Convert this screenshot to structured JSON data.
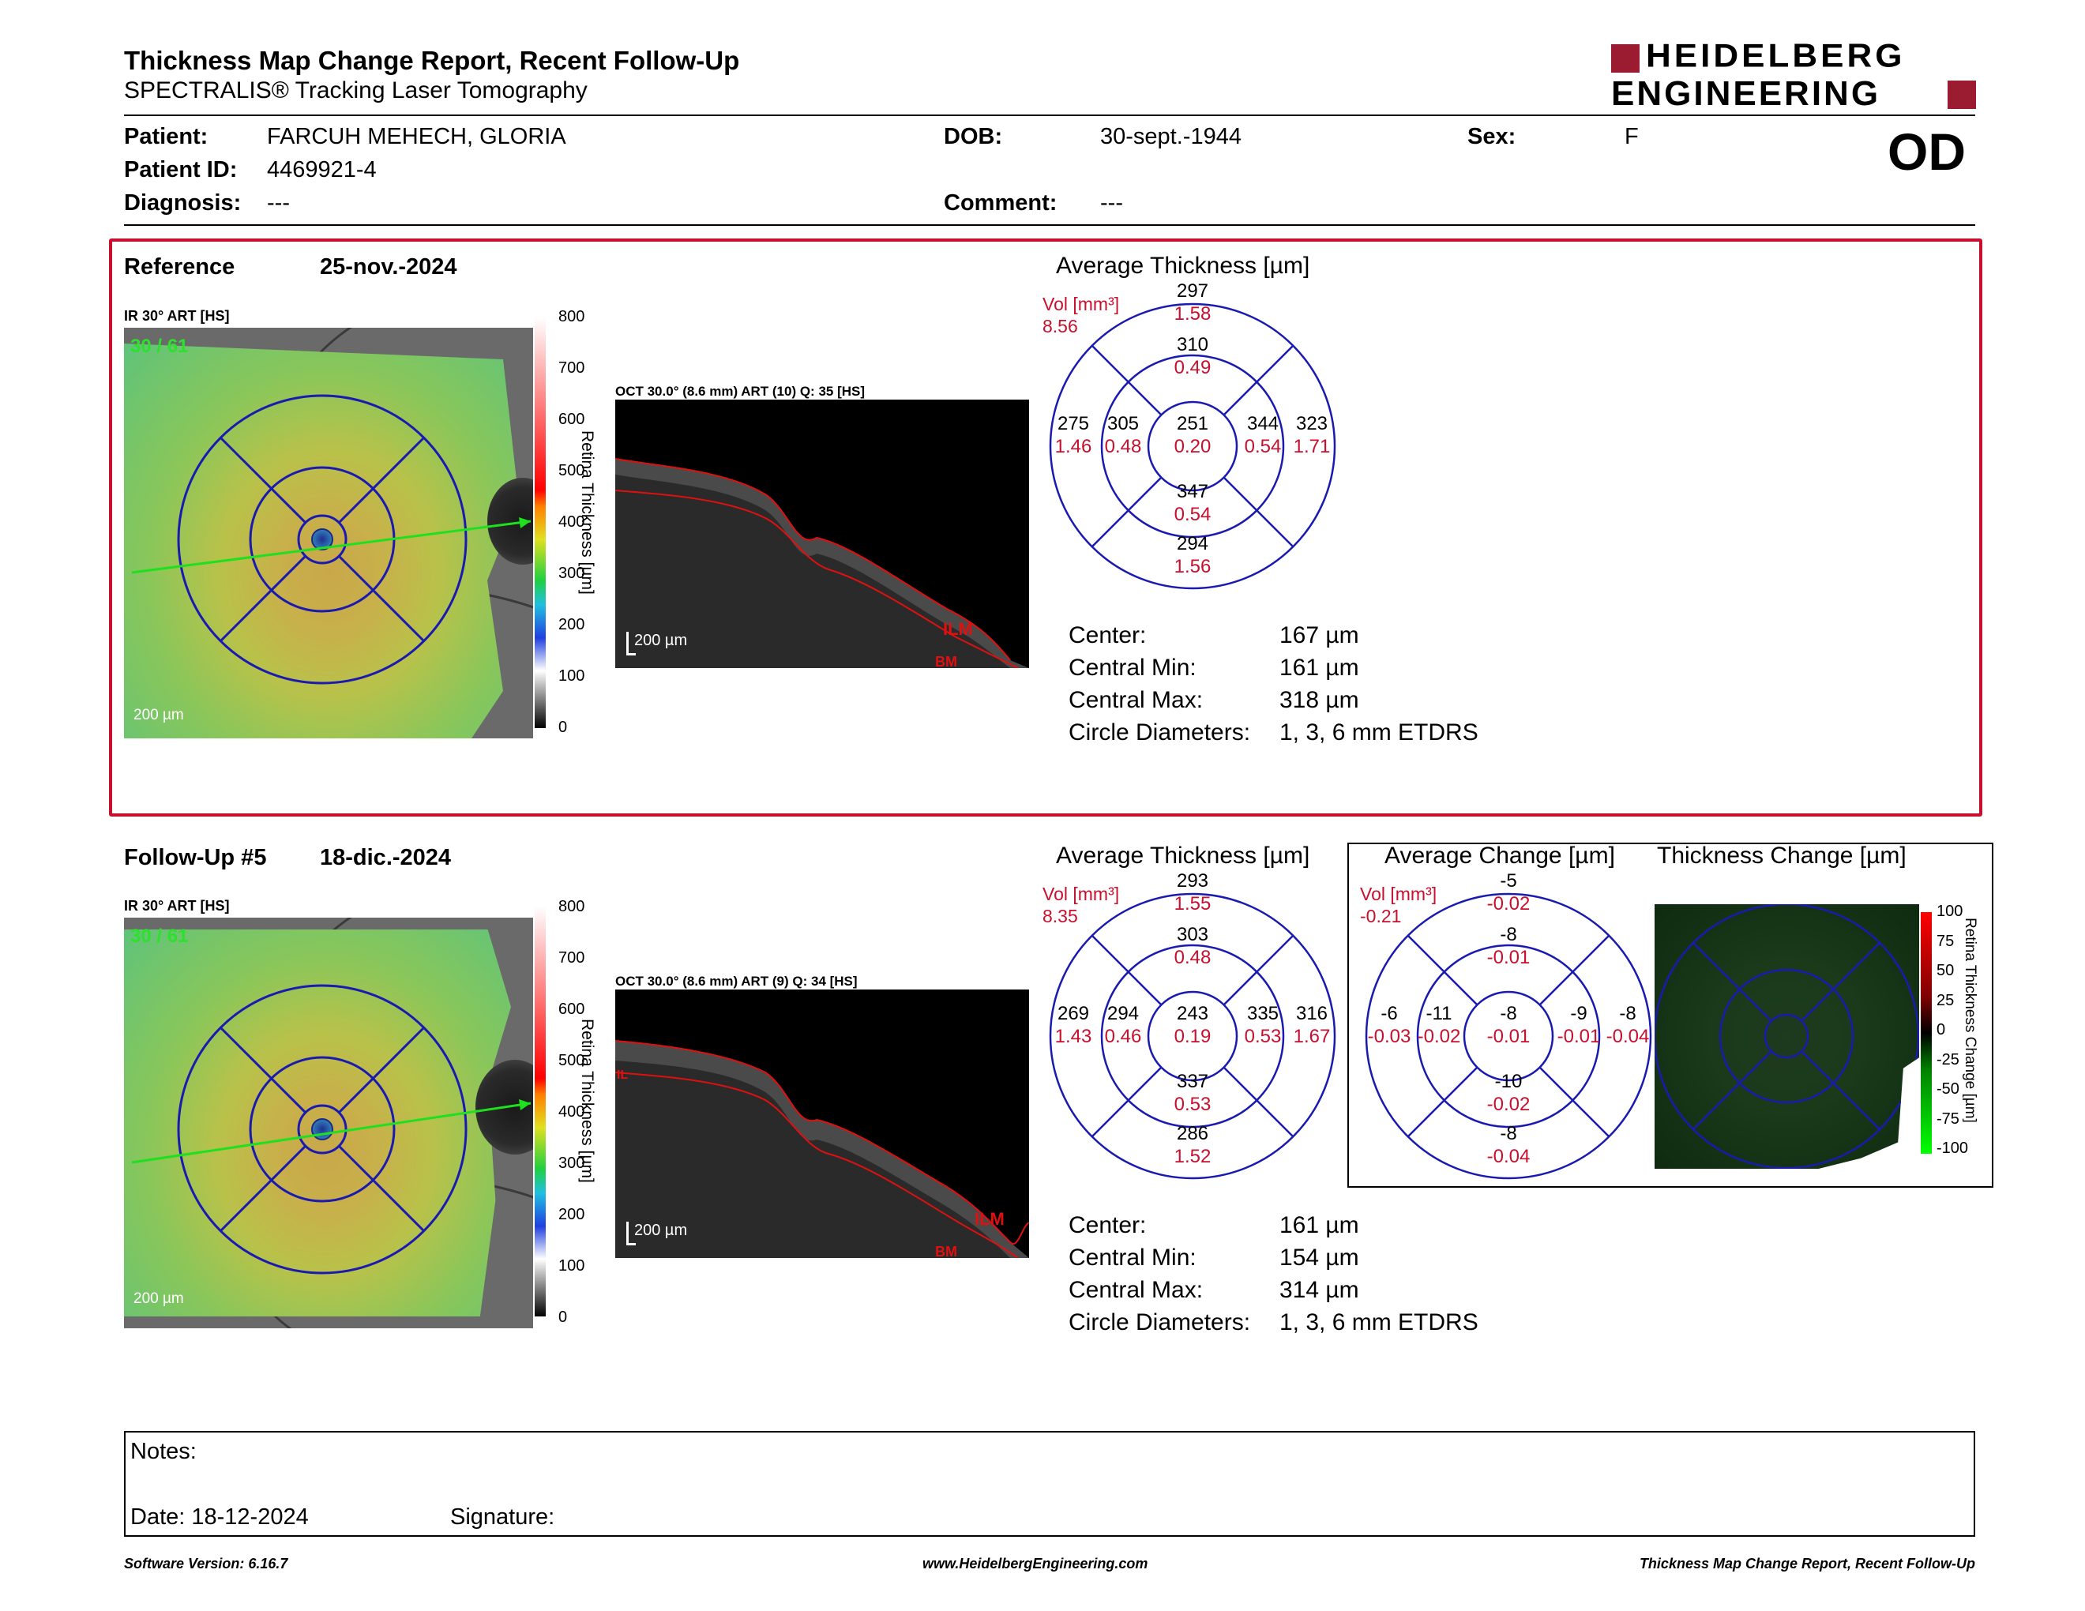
{
  "header": {
    "title": "Thickness Map Change Report, Recent Follow-Up",
    "subtitle": "SPECTRALIS® Tracking Laser Tomography",
    "brand_line1": "HEIDELBERG",
    "brand_line2": "ENGINEERING",
    "eye": "OD"
  },
  "patient": {
    "patient_label": "Patient:",
    "patient_value": "FARCUH MEHECH, GLORIA",
    "id_label": "Patient ID:",
    "id_value": "4469921-4",
    "diagnosis_label": "Diagnosis:",
    "diagnosis_value": "---",
    "dob_label": "DOB:",
    "dob_value": "30-sept.-1944",
    "comment_label": "Comment:",
    "comment_value": "---",
    "sex_label": "Sex:",
    "sex_value": "F"
  },
  "reference": {
    "label": "Reference",
    "date": "25-nov.-2024",
    "ir_label": "IR 30° ART [HS]",
    "ir_tag": "30 / 61",
    "scale": "200 µm",
    "oct_label": "OCT 30.0° (8.6 mm) ART (10) Q: 35 [HS]",
    "oct_scale": "200 µm",
    "ilm": "ILM",
    "bm": "BM",
    "grid_title": "Average Thickness [µm]",
    "vol_label": "Vol [mm³]",
    "vol_value": "8.56",
    "grid": {
      "c": [
        "251",
        "0.20"
      ],
      "in": [
        "310",
        "0.49"
      ],
      "on": [
        "297",
        "1.58"
      ],
      "is": [
        "347",
        "0.54"
      ],
      "os": [
        "294",
        "1.56"
      ],
      "it": [
        "305",
        "0.48"
      ],
      "ot": [
        "275",
        "1.46"
      ],
      "iN": [
        "344",
        "0.54"
      ],
      "oN": [
        "323",
        "1.71"
      ]
    },
    "stats": [
      [
        "Center:",
        "167 µm"
      ],
      [
        "Central Min:",
        "161 µm"
      ],
      [
        "Central Max:",
        "318 µm"
      ],
      [
        "Circle Diameters:",
        "1, 3, 6 mm ETDRS"
      ]
    ]
  },
  "followup": {
    "label": "Follow-Up #5",
    "date": "18-dic.-2024",
    "ir_label": "IR 30° ART [HS]",
    "ir_tag": "30 / 61",
    "scale": "200 µm",
    "oct_label": "OCT 30.0° (8.6 mm) ART (9) Q: 34 [HS]",
    "oct_scale": "200 µm",
    "ilm": "ILM",
    "bm": "BM",
    "ilm_short": "ILM",
    "grid_title": "Average Thickness [µm]",
    "vol_label": "Vol [mm³]",
    "vol_value": "8.35",
    "grid": {
      "c": [
        "243",
        "0.19"
      ],
      "in": [
        "303",
        "0.48"
      ],
      "on": [
        "293",
        "1.55"
      ],
      "is": [
        "337",
        "0.53"
      ],
      "os": [
        "286",
        "1.52"
      ],
      "it": [
        "294",
        "0.46"
      ],
      "ot": [
        "269",
        "1.43"
      ],
      "iN": [
        "335",
        "0.53"
      ],
      "oN": [
        "316",
        "1.67"
      ]
    },
    "stats": [
      [
        "Center:",
        "161 µm"
      ],
      [
        "Central Min:",
        "154 µm"
      ],
      [
        "Central Max:",
        "314 µm"
      ],
      [
        "Circle Diameters:",
        "1, 3, 6 mm ETDRS"
      ]
    ]
  },
  "change": {
    "title": "Average Change [µm]",
    "map_title": "Thickness Change [µm]",
    "vol_label": "Vol [mm³]",
    "vol_value": "-0.21",
    "grid": {
      "c": [
        "-8",
        "-0.01"
      ],
      "in": [
        "-8",
        "-0.01"
      ],
      "on": [
        "-5",
        "-0.02"
      ],
      "is": [
        "-10",
        "-0.02"
      ],
      "os": [
        "-8",
        "-0.04"
      ],
      "it": [
        "-11",
        "-0.02"
      ],
      "ot": [
        "-6",
        "-0.03"
      ],
      "iN": [
        "-9",
        "-0.01"
      ],
      "oN": [
        "-8",
        "-0.04"
      ]
    },
    "bar_ticks": [
      "100",
      "75",
      "50",
      "25",
      "0",
      "-25",
      "-50",
      "-75",
      "-100"
    ],
    "bar_label": "Retina Thickness Change [µm]"
  },
  "colorbar": {
    "ticks": [
      "800",
      "700",
      "600",
      "500",
      "400",
      "300",
      "200",
      "100",
      "0"
    ],
    "label": "Retina Thickness [µm]"
  },
  "notes": {
    "notes_label": "Notes:",
    "date_label": "Date: 18-12-2024",
    "signature_label": "Signature:"
  },
  "footer": {
    "version": "Software Version: 6.16.7",
    "url": "www.HeidelbergEngineering.com",
    "report": "Thickness Map Change Report, Recent Follow-Up"
  },
  "colors": {
    "accent_red": "#c8102e",
    "grid_blue": "#1a1ab0",
    "brand_red": "#9b1b30"
  }
}
